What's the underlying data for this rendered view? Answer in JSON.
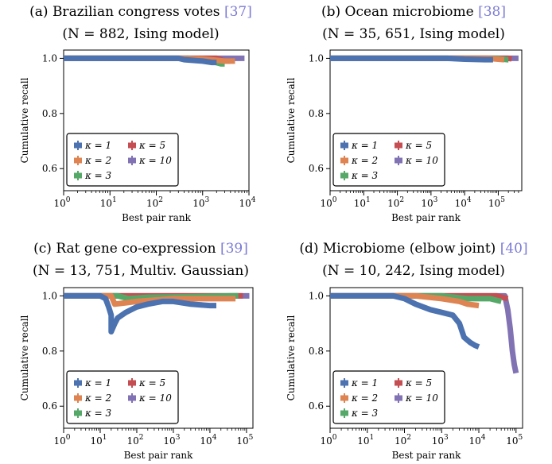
{
  "colors": {
    "k1": "#4c72b0",
    "k2": "#dd8452",
    "k3": "#55a868",
    "k5": "#c44e52",
    "k10": "#8172b3",
    "ref": "#7b7bd6"
  },
  "chart_data": [
    {
      "type": "line",
      "title": "(a) Brazilian congress votes",
      "title_ref": "[37]",
      "subtitle": "(N = 882, Ising model)",
      "xlabel": "Best pair rank",
      "ylabel": "Cumulative recall",
      "x_scale": "log",
      "xlim": [
        1,
        10000
      ],
      "ylim": [
        0.52,
        1.03
      ],
      "x_ticks": [
        1,
        10,
        100,
        1000,
        10000
      ],
      "x_tick_labels": [
        "10^0",
        "10^1",
        "10^2",
        "10^3",
        "10^4"
      ],
      "y_ticks": [
        0.6,
        0.8,
        1.0
      ],
      "y_tick_labels": [
        "0.6",
        "0.8",
        "1.0"
      ],
      "legend": [
        "κ = 1",
        "κ = 2",
        "κ = 3",
        "κ = 5",
        "κ = 10"
      ],
      "series": [
        {
          "name": "κ = 1",
          "color_key": "k1",
          "points": [
            [
              1,
              1.0
            ],
            [
              30,
              1.0
            ],
            [
              300,
              1.0
            ],
            [
              400,
              0.995
            ],
            [
              1000,
              0.99
            ],
            [
              1600,
              0.985
            ],
            [
              2000,
              0.985
            ]
          ]
        },
        {
          "name": "κ = 2",
          "color_key": "k2",
          "points": [
            [
              1,
              1.0
            ],
            [
              300,
              1.0
            ],
            [
              1000,
              0.998
            ],
            [
              3000,
              0.99
            ],
            [
              5000,
              0.99
            ]
          ]
        },
        {
          "name": "κ = 3",
          "color_key": "k3",
          "points": [
            [
              1,
              1.0
            ],
            [
              500,
              1.0
            ],
            [
              1500,
              0.99
            ],
            [
              2500,
              0.98
            ],
            [
              3000,
              0.98
            ]
          ]
        },
        {
          "name": "κ = 5",
          "color_key": "k5",
          "points": [
            [
              1,
              1.0
            ],
            [
              2000,
              1.0
            ],
            [
              3000,
              0.99
            ],
            [
              4000,
              0.99
            ]
          ]
        },
        {
          "name": "κ = 10",
          "color_key": "k10",
          "points": [
            [
              1,
              1.0
            ],
            [
              5000,
              1.0
            ],
            [
              8000,
              1.0
            ]
          ]
        }
      ]
    },
    {
      "type": "line",
      "title": "(b) Ocean microbiome",
      "title_ref": "[38]",
      "subtitle": "(N = 35, 651, Ising model)",
      "xlabel": "Best pair rank",
      "ylabel": "Cumulative recall",
      "x_scale": "log",
      "xlim": [
        1,
        500000
      ],
      "ylim": [
        0.52,
        1.03
      ],
      "x_ticks": [
        1,
        10,
        100,
        1000,
        10000,
        100000
      ],
      "x_tick_labels": [
        "10^0",
        "10^1",
        "10^2",
        "10^3",
        "10^4",
        "10^5"
      ],
      "y_ticks": [
        0.6,
        0.8,
        1.0
      ],
      "y_tick_labels": [
        "0.6",
        "0.8",
        "1.0"
      ],
      "legend": [
        "κ = 1",
        "κ = 2",
        "κ = 3",
        "κ = 5",
        "κ = 10"
      ],
      "series": [
        {
          "name": "κ = 1",
          "color_key": "k1",
          "points": [
            [
              1,
              1.0
            ],
            [
              3000,
              1.0
            ],
            [
              10000,
              0.997
            ],
            [
              40000,
              0.995
            ],
            [
              70000,
              0.995
            ]
          ]
        },
        {
          "name": "κ = 2",
          "color_key": "k2",
          "points": [
            [
              1,
              1.0
            ],
            [
              50000,
              1.0
            ],
            [
              100000,
              0.997
            ],
            [
              150000,
              0.995
            ]
          ]
        },
        {
          "name": "κ = 3",
          "color_key": "k3",
          "points": [
            [
              1,
              1.0
            ],
            [
              100000,
              1.0
            ],
            [
              180000,
              0.995
            ],
            [
              200000,
              0.995
            ]
          ]
        },
        {
          "name": "κ = 5",
          "color_key": "k5",
          "points": [
            [
              1,
              1.0
            ],
            [
              200000,
              1.0
            ],
            [
              250000,
              0.998
            ]
          ]
        },
        {
          "name": "κ = 10",
          "color_key": "k10",
          "points": [
            [
              1,
              1.0
            ],
            [
              300000,
              1.0
            ],
            [
              400000,
              1.0
            ]
          ]
        }
      ]
    },
    {
      "type": "line",
      "title": "(c) Rat gene co-expression",
      "title_ref": "[39]",
      "subtitle": "(N = 13, 751, Multiv. Gaussian)",
      "xlabel": "Best pair rank",
      "ylabel": "Cumulative recall",
      "x_scale": "log",
      "xlim": [
        1,
        150000
      ],
      "ylim": [
        0.52,
        1.03
      ],
      "x_ticks": [
        1,
        10,
        100,
        1000,
        10000,
        100000
      ],
      "x_tick_labels": [
        "10^0",
        "10^1",
        "10^2",
        "10^3",
        "10^4",
        "10^5"
      ],
      "y_ticks": [
        0.6,
        0.8,
        1.0
      ],
      "y_tick_labels": [
        "0.6",
        "0.8",
        "1.0"
      ],
      "legend": [
        "κ = 1",
        "κ = 2",
        "κ = 3",
        "κ = 5",
        "κ = 10"
      ],
      "series": [
        {
          "name": "κ = 1",
          "color_key": "k1",
          "points": [
            [
              1,
              1.0
            ],
            [
              10,
              1.0
            ],
            [
              14,
              0.99
            ],
            [
              17,
              0.96
            ],
            [
              20,
              0.93
            ],
            [
              20,
              0.87
            ],
            [
              25,
              0.9
            ],
            [
              30,
              0.92
            ],
            [
              50,
              0.94
            ],
            [
              100,
              0.96
            ],
            [
              200,
              0.97
            ],
            [
              500,
              0.98
            ],
            [
              1000,
              0.98
            ],
            [
              3000,
              0.97
            ],
            [
              10000,
              0.965
            ],
            [
              15000,
              0.965
            ]
          ]
        },
        {
          "name": "κ = 2",
          "color_key": "k2",
          "points": [
            [
              1,
              1.0
            ],
            [
              20,
              1.0
            ],
            [
              25,
              0.97
            ],
            [
              50,
              0.975
            ],
            [
              100,
              0.98
            ],
            [
              1000,
              0.99
            ],
            [
              10000,
              0.99
            ],
            [
              30000,
              0.99
            ],
            [
              50000,
              0.99
            ]
          ]
        },
        {
          "name": "κ = 3",
          "color_key": "k3",
          "points": [
            [
              1,
              1.0
            ],
            [
              30,
              1.0
            ],
            [
              60,
              0.99
            ],
            [
              200,
              0.995
            ],
            [
              5000,
              0.998
            ],
            [
              40000,
              1.0
            ],
            [
              60000,
              1.0
            ]
          ]
        },
        {
          "name": "κ = 5",
          "color_key": "k5",
          "points": [
            [
              1,
              1.0
            ],
            [
              60000,
              1.0
            ],
            [
              80000,
              1.0
            ]
          ]
        },
        {
          "name": "κ = 10",
          "color_key": "k10",
          "points": [
            [
              1,
              1.0
            ],
            [
              80000,
              1.0
            ],
            [
              120000,
              1.0
            ]
          ]
        }
      ]
    },
    {
      "type": "line",
      "title": "(d) Microbiome (elbow joint)",
      "title_ref": "[40]",
      "subtitle": "(N = 10, 242, Ising model)",
      "xlabel": "Best pair rank",
      "ylabel": "Cumulative recall",
      "x_scale": "log",
      "xlim": [
        1,
        150000
      ],
      "ylim": [
        0.52,
        1.03
      ],
      "x_ticks": [
        1,
        10,
        100,
        1000,
        10000,
        100000
      ],
      "x_tick_labels": [
        "10^0",
        "10^1",
        "10^2",
        "10^3",
        "10^4",
        "10^5"
      ],
      "y_ticks": [
        0.6,
        0.8,
        1.0
      ],
      "y_tick_labels": [
        "0.6",
        "0.8",
        "1.0"
      ],
      "legend": [
        "κ = 1",
        "κ = 2",
        "κ = 3",
        "κ = 5",
        "κ = 10"
      ],
      "series": [
        {
          "name": "κ = 1",
          "color_key": "k1",
          "points": [
            [
              1,
              1.0
            ],
            [
              50,
              1.0
            ],
            [
              100,
              0.99
            ],
            [
              200,
              0.97
            ],
            [
              500,
              0.95
            ],
            [
              1000,
              0.94
            ],
            [
              2000,
              0.93
            ],
            [
              3000,
              0.9
            ],
            [
              4000,
              0.85
            ],
            [
              6000,
              0.83
            ],
            [
              8000,
              0.82
            ],
            [
              10000,
              0.815
            ]
          ]
        },
        {
          "name": "κ = 2",
          "color_key": "k2",
          "points": [
            [
              1,
              1.0
            ],
            [
              200,
              1.0
            ],
            [
              1000,
              0.99
            ],
            [
              3000,
              0.98
            ],
            [
              5000,
              0.97
            ],
            [
              10000,
              0.965
            ]
          ]
        },
        {
          "name": "κ = 3",
          "color_key": "k3",
          "points": [
            [
              1,
              1.0
            ],
            [
              1000,
              1.0
            ],
            [
              5000,
              0.99
            ],
            [
              20000,
              0.99
            ],
            [
              40000,
              0.98
            ]
          ]
        },
        {
          "name": "κ = 5",
          "color_key": "k5",
          "points": [
            [
              1,
              1.0
            ],
            [
              30000,
              1.0
            ],
            [
              60000,
              0.99
            ]
          ]
        },
        {
          "name": "κ = 10",
          "color_key": "k10",
          "points": [
            [
              1,
              1.0
            ],
            [
              50000,
              1.0
            ],
            [
              60000,
              0.95
            ],
            [
              70000,
              0.88
            ],
            [
              80000,
              0.8
            ],
            [
              90000,
              0.75
            ],
            [
              100000,
              0.72
            ]
          ]
        }
      ]
    }
  ]
}
